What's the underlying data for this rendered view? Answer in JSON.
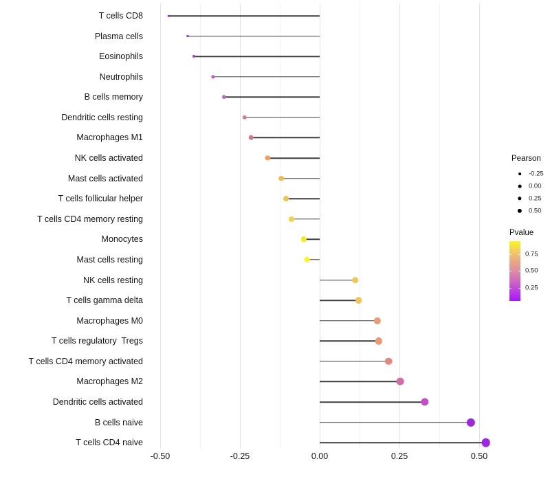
{
  "chart_data": {
    "type": "lollipop",
    "orientation": "horizontal",
    "title": "",
    "xlabel": "",
    "ylabel": "",
    "grid": "vertical major and minor, no panel border",
    "xlim": [
      -0.543,
      0.556
    ],
    "x_ticks": [
      "-0.50",
      "-0.25",
      "0.00",
      "0.25",
      "0.50"
    ],
    "x_tick_values": [
      -0.5,
      -0.25,
      0,
      0.25,
      0.5
    ],
    "x_minor_values": [
      -0.375,
      -0.125,
      0.125,
      0.375
    ],
    "baseline_value": 0,
    "points": [
      {
        "label": "T cells CD8",
        "pearson": -0.474,
        "color": "#8a2bd0"
      },
      {
        "label": "Plasma cells",
        "pearson": -0.414,
        "color": "#9c3ac5"
      },
      {
        "label": "Eosinophils",
        "pearson": -0.394,
        "color": "#a845c8"
      },
      {
        "label": "Neutrophils",
        "pearson": -0.334,
        "color": "#ba57c8"
      },
      {
        "label": "B cells memory",
        "pearson": -0.3,
        "color": "#c566c2"
      },
      {
        "label": "Dendritic cells resting",
        "pearson": -0.235,
        "color": "#d37f92"
      },
      {
        "label": "Macrophages M1",
        "pearson": -0.215,
        "color": "#d5798a"
      },
      {
        "label": "NK cells activated",
        "pearson": -0.163,
        "color": "#eca361"
      },
      {
        "label": "Mast cells activated",
        "pearson": -0.12,
        "color": "#edbb55"
      },
      {
        "label": "T cells follicular helper",
        "pearson": -0.106,
        "color": "#eec253"
      },
      {
        "label": "T cells CD4 memory resting",
        "pearson": -0.088,
        "color": "#f0d24e"
      },
      {
        "label": "Monocytes",
        "pearson": -0.05,
        "color": "#f5ea30"
      },
      {
        "label": "Mast cells resting",
        "pearson": -0.039,
        "color": "#fdf32b"
      },
      {
        "label": "NK cells resting",
        "pearson": 0.111,
        "color": "#eec75a"
      },
      {
        "label": "T cells gamma delta",
        "pearson": 0.122,
        "color": "#efc558"
      },
      {
        "label": "Macrophages M0",
        "pearson": 0.181,
        "color": "#e89b76"
      },
      {
        "label": "T cells regulatory  Tregs",
        "pearson": 0.185,
        "color": "#e79a78"
      },
      {
        "label": "T cells CD4 memory activated",
        "pearson": 0.216,
        "color": "#e18a85"
      },
      {
        "label": "Macrophages M2",
        "pearson": 0.253,
        "color": "#d06da8"
      },
      {
        "label": "Dendritic cells activated",
        "pearson": 0.33,
        "color": "#c44fc8"
      },
      {
        "label": "B cells naive",
        "pearson": 0.474,
        "color": "#9b2ad8"
      },
      {
        "label": "T cells CD4 naive",
        "pearson": 0.521,
        "color": "#9d27e2"
      }
    ],
    "legend_size": {
      "title": "Pearson",
      "ticks": [
        "-0.25",
        "0.00",
        "0.25",
        "0.50"
      ]
    },
    "legend_color": {
      "title": "Pvalue",
      "ticks": [
        "0.75",
        "0.50",
        "0.25"
      ],
      "gradient_top_to_bottom": [
        "#fbf719",
        "#f2cd63",
        "#e7a985",
        "#dd8da2",
        "#cf68c0",
        "#bb3fe2",
        "#a716fa"
      ]
    },
    "colors": {
      "stem": "#3d3d3d",
      "grid_major": "#e3e3e3",
      "grid_minor": "#f2f2f2",
      "axis_text": "#141414",
      "legend_dot": "#000000",
      "background": "#ffffff"
    }
  }
}
